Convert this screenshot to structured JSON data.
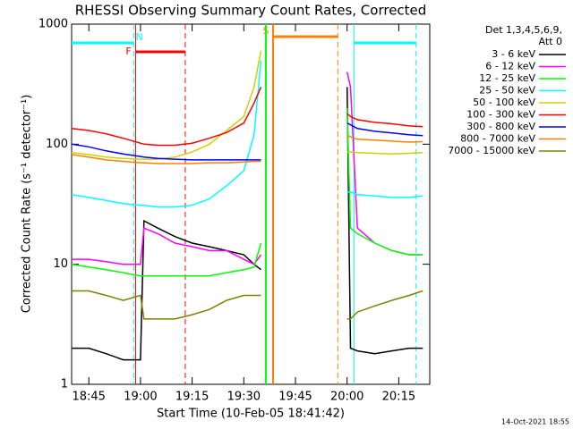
{
  "chart_data": {
    "type": "line",
    "title": "RHESSI Observing Summary Count Rates, Corrected",
    "x_label": "Start Time (10-Feb-05 18:41:42)",
    "y_label": "Corrected Count Rate (s⁻¹ detector⁻¹)",
    "legend_header": [
      "Det 1,3,4,5,6,9,",
      "Att 0"
    ],
    "footer": "14-Oct-2021 18:55",
    "log_y": true,
    "xlim": [
      1120,
      1224
    ],
    "xticks": [
      {
        "value": 1125,
        "label": "18:45"
      },
      {
        "value": 1140,
        "label": "19:00"
      },
      {
        "value": 1155,
        "label": "19:15"
      },
      {
        "value": 1170,
        "label": "19:30"
      },
      {
        "value": 1185,
        "label": "19:45"
      },
      {
        "value": 1200,
        "label": "20:00"
      },
      {
        "value": 1215,
        "label": "20:15"
      }
    ],
    "ylim": [
      1,
      1000
    ],
    "yticks": [
      1,
      10,
      100,
      1000
    ],
    "x": [
      1120,
      1125,
      1130,
      1135,
      1140,
      1141,
      1145,
      1150,
      1155,
      1160,
      1165,
      1170,
      1173,
      1175,
      1187,
      1200,
      1201,
      1203,
      1208,
      1213,
      1218,
      1222
    ],
    "series": [
      {
        "name": "3 - 6 keV",
        "color": "#000000",
        "values": [
          2,
          2,
          1.8,
          1.6,
          1.6,
          23,
          20,
          17,
          15,
          14,
          13,
          12,
          10,
          9,
          null,
          300,
          2,
          1.9,
          1.8,
          1.9,
          2,
          2
        ]
      },
      {
        "name": "6 - 12 keV",
        "color": "#ff00ff",
        "values": [
          11,
          11,
          10.5,
          10,
          10,
          20,
          18,
          15,
          14,
          13,
          13,
          11,
          10,
          12,
          null,
          400,
          300,
          20,
          15,
          13,
          12,
          12
        ]
      },
      {
        "name": "12 - 25 keV",
        "color": "#00ff00",
        "values": [
          10,
          9.5,
          9,
          8.5,
          8,
          8,
          8,
          8,
          8,
          8,
          8.5,
          9,
          9.5,
          15,
          null,
          200,
          20,
          18,
          15,
          13,
          12,
          12
        ]
      },
      {
        "name": "25 - 50 keV",
        "color": "#00ffff",
        "values": [
          38,
          36,
          34,
          32,
          31,
          31,
          30,
          30,
          31,
          35,
          45,
          60,
          120,
          500,
          null,
          40,
          40,
          38,
          37,
          36,
          36,
          37
        ]
      },
      {
        "name": "50 - 100 keV",
        "color": "#d0d000",
        "values": [
          85,
          82,
          78,
          76,
          75,
          75,
          75,
          78,
          86,
          100,
          130,
          170,
          300,
          600,
          null,
          86,
          86,
          85,
          84,
          83,
          84,
          85
        ]
      },
      {
        "name": "100 - 300 keV",
        "color": "#ff0000",
        "values": [
          135,
          130,
          122,
          112,
          102,
          100,
          98,
          98,
          102,
          112,
          125,
          150,
          220,
          300,
          null,
          180,
          170,
          160,
          152,
          148,
          142,
          140
        ]
      },
      {
        "name": "300 - 800 keV",
        "color": "#0000ff",
        "values": [
          100,
          95,
          88,
          83,
          79,
          78,
          76,
          75,
          74,
          74,
          74,
          74,
          74,
          74,
          null,
          150,
          145,
          135,
          128,
          124,
          120,
          118
        ]
      },
      {
        "name": "800 - 7000 keV",
        "color": "#ff8000",
        "values": [
          82,
          78,
          74,
          72,
          70,
          70,
          69,
          69,
          69,
          70,
          70,
          71,
          72,
          72,
          null,
          120,
          115,
          110,
          108,
          106,
          104,
          105
        ]
      },
      {
        "name": "7000 - 15000 keV",
        "color": "#808000",
        "values": [
          6,
          6,
          5.5,
          5,
          5.5,
          3.5,
          3.5,
          3.5,
          3.8,
          4.2,
          5,
          5.5,
          5.5,
          5.5,
          null,
          3.5,
          3.5,
          4,
          4.5,
          5,
          5.5,
          6
        ]
      }
    ],
    "flags": [
      {
        "label": "N",
        "color": "#00ffff",
        "start": 1120,
        "end": 1138.1
      },
      {
        "label": "F",
        "color": "#ff0000",
        "start": 1138.6,
        "end": 1153
      },
      {
        "label": "S",
        "color": "#ff8000",
        "start": 1178.5,
        "end": 1197.3
      },
      {
        "label": null,
        "color": "#00ffff",
        "start": 1202,
        "end": 1220
      }
    ],
    "markers": [
      {
        "x": 1176.4,
        "color": "#00ff00"
      }
    ]
  }
}
